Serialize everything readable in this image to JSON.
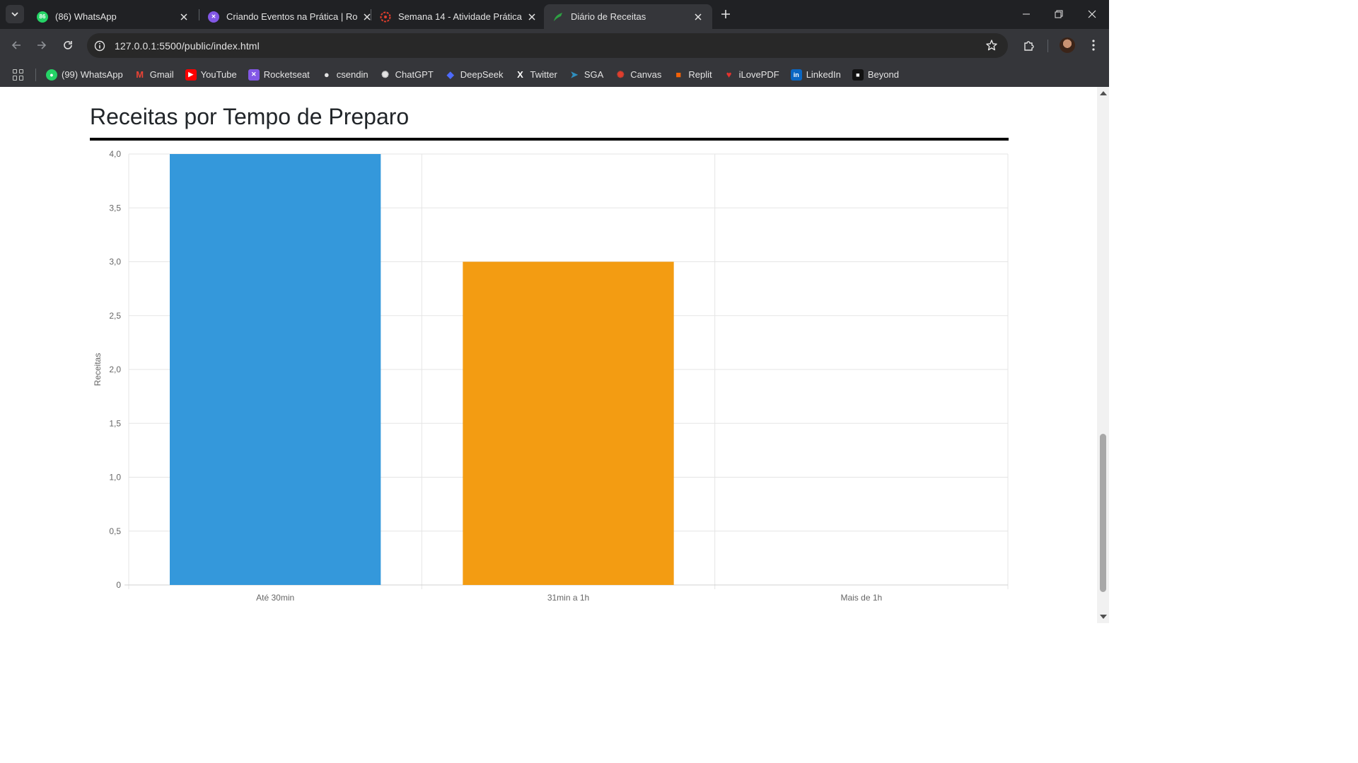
{
  "browser": {
    "tabs": [
      {
        "title": "(86) WhatsApp",
        "favicon": "whatsapp-icon",
        "badge": "86",
        "color": "#25d366"
      },
      {
        "title": "Criando Eventos na Prática | Ro",
        "favicon": "rocketseat-icon",
        "color": "#8257e5"
      },
      {
        "title": "Semana 14 - Atividade Prática",
        "favicon": "canvas-icon",
        "color": "#e03e2d"
      },
      {
        "title": "Diário de Receitas",
        "favicon": "vscode-live-icon",
        "color": "#2ea043",
        "active": true
      }
    ],
    "url": "127.0.0.1:5500/public/index.html",
    "bookmarks": [
      {
        "label": "(99) WhatsApp",
        "icon": "whatsapp-icon",
        "color": "#25d366"
      },
      {
        "label": "Gmail",
        "icon": "gmail-icon",
        "color": "#ea4335"
      },
      {
        "label": "YouTube",
        "icon": "youtube-icon",
        "color": "#ff0000"
      },
      {
        "label": "Rocketseat",
        "icon": "rocketseat-icon",
        "color": "#8257e5"
      },
      {
        "label": "csendin",
        "icon": "github-icon",
        "color": "#e3e3e3"
      },
      {
        "label": "ChatGPT",
        "icon": "chatgpt-icon",
        "color": "#e3e3e3"
      },
      {
        "label": "DeepSeek",
        "icon": "deepseek-icon",
        "color": "#4d6bfe"
      },
      {
        "label": "Twitter",
        "icon": "x-twitter-icon",
        "color": "#ffffff"
      },
      {
        "label": "SGA",
        "icon": "sga-icon",
        "color": "#2f8fbf"
      },
      {
        "label": "Canvas",
        "icon": "canvas-icon",
        "color": "#e03e2d"
      },
      {
        "label": "Replit",
        "icon": "replit-icon",
        "color": "#f26207"
      },
      {
        "label": "iLovePDF",
        "icon": "ilovepdf-icon",
        "color": "#e5322d"
      },
      {
        "label": "LinkedIn",
        "icon": "linkedin-icon",
        "color": "#0a66c2"
      },
      {
        "label": "Beyond",
        "icon": "beyond-icon",
        "color": "#111111"
      }
    ]
  },
  "page": {
    "heading": "Receitas por Tempo de Preparo"
  },
  "chart_data": {
    "type": "bar",
    "categories": [
      "Até 30min",
      "31min a 1h",
      "Mais de 1h"
    ],
    "values": [
      4,
      3,
      0
    ],
    "colors": [
      "#3498db",
      "#f39c12",
      "#e74c3c"
    ],
    "title": "",
    "xlabel": "",
    "ylabel": "Receitas",
    "ylim": [
      0,
      4
    ],
    "yticks": [
      0,
      0.5,
      1,
      1.5,
      2,
      2.5,
      3,
      3.5,
      4
    ],
    "ytick_labels": [
      "0",
      "0,5",
      "1,0",
      "1,5",
      "2,0",
      "2,5",
      "3,0",
      "3,5",
      "4,0"
    ],
    "grid": true,
    "legend": "none"
  }
}
